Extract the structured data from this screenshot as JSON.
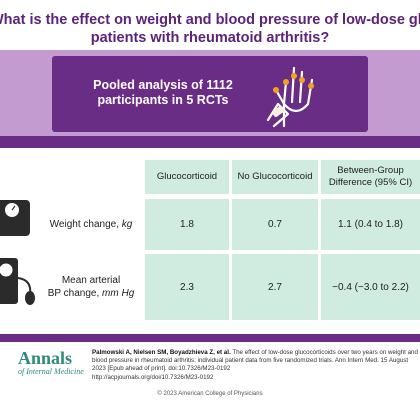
{
  "header": {
    "title_line1": "What is the effect on weight and blood pressure of low-dose glucocorticoids in",
    "title_line2": "patients with rheumatoid arthritis?",
    "pooled_line1": "Pooled analysis of 1112",
    "pooled_line2": "participants in 5 RCTs"
  },
  "table": {
    "columns": [
      "Glucocorticoid",
      "No Glucocorticoid",
      "Between-Group Difference (95% CI)"
    ],
    "rows": [
      {
        "label": "Weight change,",
        "unit": "kg",
        "values": [
          "1.8",
          "0.7",
          "1.1 (0.4 to 1.8)"
        ]
      },
      {
        "label_line1": "Mean arterial",
        "label_line2": "BP change,",
        "unit": "mm Hg",
        "values": [
          "2.3",
          "2.7",
          "−0.4 (−3.0 to 2.2)"
        ]
      }
    ]
  },
  "footer": {
    "logo_main": "Annals",
    "logo_sub": "of Internal Medicine",
    "citation_authors": "Palmowski A, Nielsen SM, Boyadzhieva Z, et al.",
    "citation_text": "The effect of low-dose glucocorticoids over two years on weight and blood pressure in rheumatoid arthritis: individual patient data from five randomized trials. Ann Intern Med. 15 August 2023 [Epub ahead of print]. doi:10.7326/M23-0192",
    "citation_url": "http://acpjournals.org/doi/10.7326/M23-0192",
    "copyright": "© 2023 American College of Physicians"
  },
  "colors": {
    "purple": "#6a2d86",
    "lavender": "#c39bd0",
    "mint": "#d0ebdf",
    "teal": "#2f8a7a"
  }
}
